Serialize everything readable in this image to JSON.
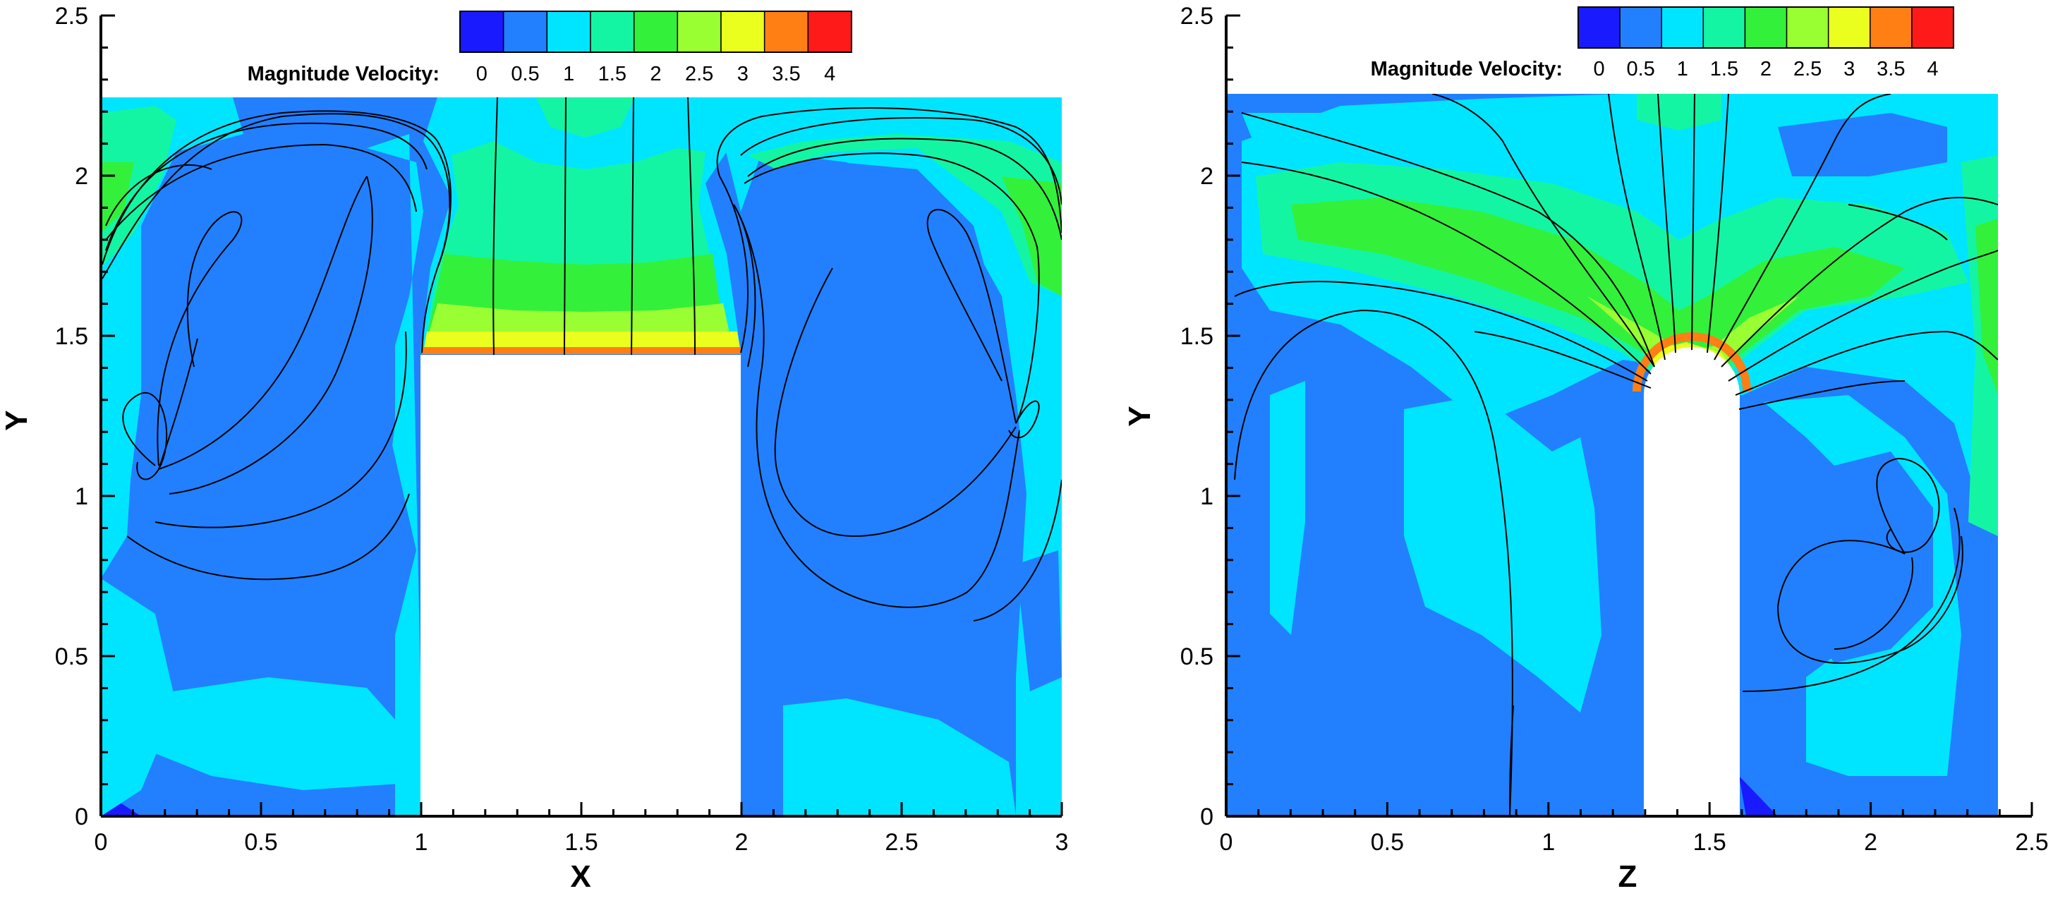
{
  "chart_data": [
    {
      "type": "contour",
      "xlabel": "X",
      "ylabel": "Y",
      "xlim": [
        0,
        3
      ],
      "ylim": [
        0,
        2.5
      ],
      "domain_top": 2.25,
      "x_ticks": [
        0,
        0.5,
        1,
        1.5,
        2,
        2.5,
        3
      ],
      "x_tick_labels": [
        "0",
        "0.5",
        "1",
        "1.5",
        "2",
        "2.5",
        "3"
      ],
      "y_ticks": [
        0,
        0.5,
        1,
        1.5,
        2,
        2.5
      ],
      "y_tick_labels": [
        "0",
        "0.5",
        "1",
        "1.5",
        "2",
        "2.5"
      ],
      "obstacle": {
        "shape": "rectangle",
        "x": [
          1,
          2
        ],
        "y": [
          0,
          1.45
        ]
      },
      "legend": {
        "title": "Magnitude Velocity:",
        "levels": [
          "0",
          "0.5",
          "1",
          "1.5",
          "2",
          "2.5",
          "3",
          "3.5",
          "4"
        ]
      }
    },
    {
      "type": "contour",
      "xlabel": "Z",
      "ylabel": "Y",
      "xlim": [
        0,
        2.5
      ],
      "ylim": [
        0,
        2.5
      ],
      "domain_top": 2.25,
      "domain_right": 2.4,
      "x_ticks": [
        0,
        0.5,
        1,
        1.5,
        2,
        2.5
      ],
      "x_tick_labels": [
        "0",
        "0.5",
        "1",
        "1.5",
        "2",
        "2.5"
      ],
      "y_ticks": [
        0,
        0.5,
        1,
        1.5,
        2,
        2.5
      ],
      "y_tick_labels": [
        "0",
        "0.5",
        "1",
        "1.5",
        "2",
        "2.5"
      ],
      "obstacle": {
        "shape": "rounded-column",
        "x": [
          1.3,
          1.6
        ],
        "y": [
          0,
          1.45
        ]
      },
      "legend": {
        "title": "Magnitude Velocity:",
        "levels": [
          "0",
          "0.5",
          "1",
          "1.5",
          "2",
          "2.5",
          "3",
          "3.5",
          "4"
        ]
      }
    }
  ],
  "colorbar_colors": [
    "#1a1aff",
    "#2280ff",
    "#00e5ff",
    "#14f5a3",
    "#33f03a",
    "#99ff33",
    "#eaff1e",
    "#ff7f14",
    "#ff1a1a"
  ]
}
